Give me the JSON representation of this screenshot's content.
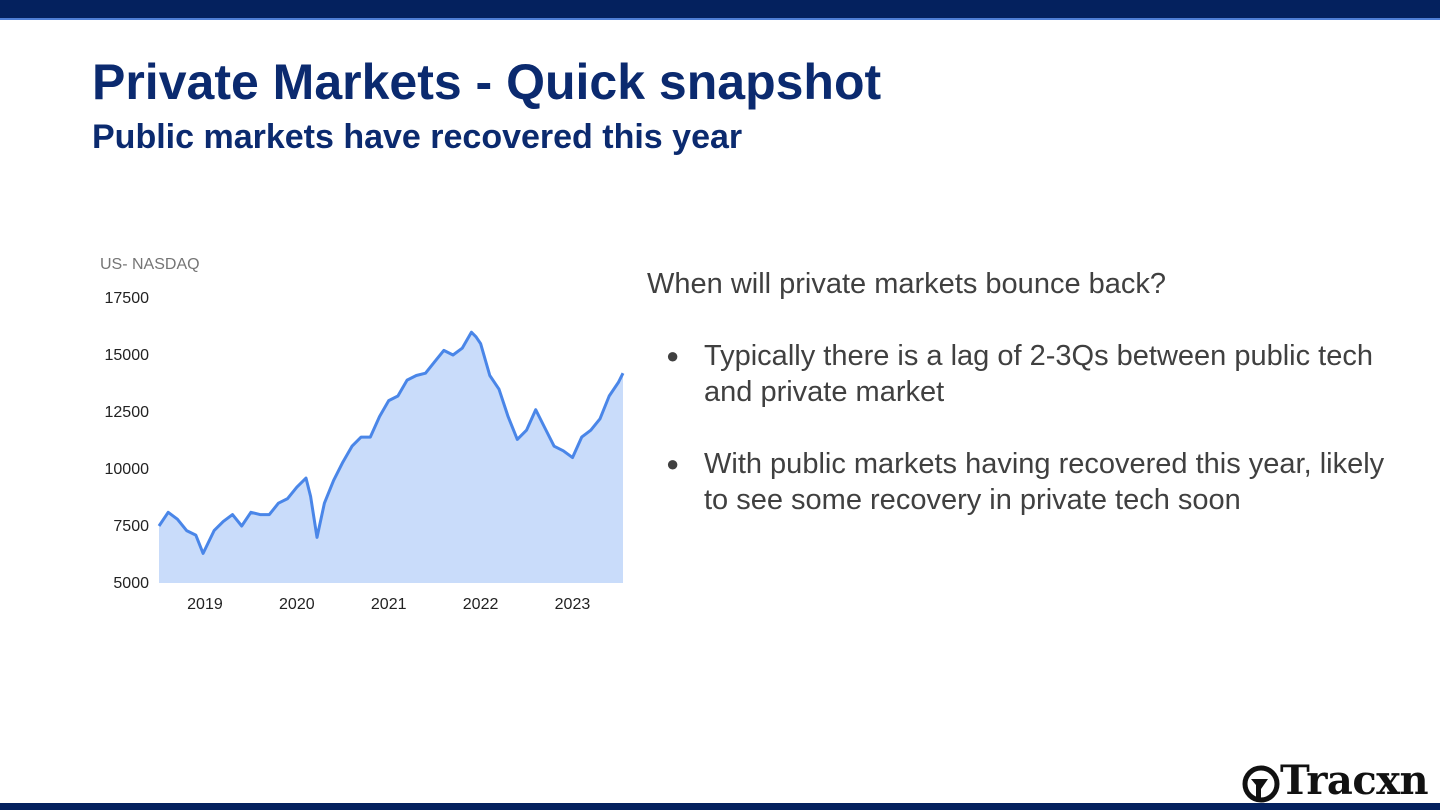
{
  "slide": {
    "title": "Private Markets - Quick snapshot",
    "subtitle": "Public markets have recovered this year"
  },
  "colors": {
    "top_bar": "#04215e",
    "title": "#0b2a6f",
    "line": "#4a86e8",
    "area": "#c9dcfa",
    "body_text": "#404040"
  },
  "panel": {
    "question": "When will private markets bounce back?",
    "bullets": [
      "Typically there is a lag of 2-3Qs between public tech and private market",
      "With public markets having recovered this year, likely to see some recovery in private tech soon"
    ]
  },
  "logo": {
    "text": "Tracxn",
    "icon": "tracxn-logo-icon"
  },
  "chart_data": {
    "type": "area",
    "title": "US- NASDAQ",
    "xlabel": "",
    "ylabel": "",
    "ylim": [
      5000,
      17500
    ],
    "yticks": [
      "17500",
      "15000",
      "12500",
      "10000",
      "7500",
      "5000"
    ],
    "xticks": [
      "2019",
      "2020",
      "2021",
      "2022",
      "2023"
    ],
    "grid": false,
    "legend": "none",
    "series": [
      {
        "x": [
          2018.5,
          2018.6,
          2018.7,
          2018.8,
          2018.9,
          2018.98,
          2019.1,
          2019.2,
          2019.3,
          2019.4,
          2019.5,
          2019.6,
          2019.7,
          2019.8,
          2019.9,
          2020.0,
          2020.1,
          2020.15,
          2020.22,
          2020.3,
          2020.4,
          2020.5,
          2020.6,
          2020.7,
          2020.8,
          2020.9,
          2021.0,
          2021.1,
          2021.2,
          2021.3,
          2021.4,
          2021.5,
          2021.6,
          2021.7,
          2021.8,
          2021.9,
          2021.95,
          2022.0,
          2022.1,
          2022.2,
          2022.3,
          2022.4,
          2022.5,
          2022.6,
          2022.7,
          2022.8,
          2022.9,
          2023.0,
          2023.1,
          2023.2,
          2023.3,
          2023.4,
          2023.5,
          2023.55
        ],
        "values": [
          7500,
          8100,
          7800,
          7300,
          7100,
          6300,
          7300,
          7700,
          8000,
          7500,
          8100,
          8000,
          8000,
          8500,
          8700,
          9200,
          9600,
          8800,
          7000,
          8500,
          9500,
          10300,
          11000,
          11400,
          11400,
          12300,
          13000,
          13200,
          13900,
          14100,
          14200,
          14700,
          15200,
          15000,
          15300,
          16000,
          15800,
          15500,
          14100,
          13500,
          12300,
          11300,
          11700,
          12600,
          11800,
          11000,
          10800,
          10500,
          11400,
          11700,
          12200,
          13200,
          13800,
          14200
        ]
      }
    ]
  }
}
